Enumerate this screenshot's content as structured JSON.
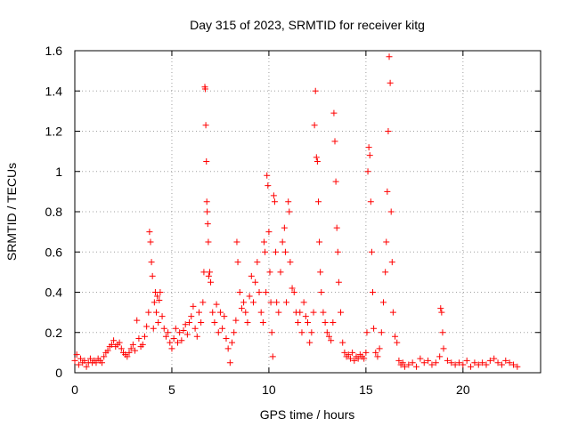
{
  "chart_data": {
    "type": "scatter",
    "title": "Day 315 of 2023, SRMTID for receiver kitg",
    "xlabel": "GPS time / hours",
    "ylabel": "SRMTID / TECUs",
    "xlim": [
      0,
      24
    ],
    "ylim": [
      0,
      1.6
    ],
    "grid": true,
    "marker": "+",
    "color": "#ff0000",
    "xticks": [
      0,
      5,
      10,
      15,
      20
    ],
    "xtick_labels": [
      "0",
      "5",
      "10",
      "15",
      "20"
    ],
    "yticks": [
      0,
      0.2,
      0.4,
      0.6,
      0.8,
      1,
      1.2,
      1.4,
      1.6
    ],
    "ytick_labels": [
      "0",
      "0.2",
      "0.4",
      "0.6",
      "0.8",
      "1",
      "1.2",
      "1.4",
      "1.6"
    ],
    "series": [
      {
        "name": "SRMTID",
        "points": [
          [
            0.0,
            0.06
          ],
          [
            0.1,
            0.09
          ],
          [
            0.2,
            0.04
          ],
          [
            0.3,
            0.07
          ],
          [
            0.4,
            0.05
          ],
          [
            0.5,
            0.06
          ],
          [
            0.6,
            0.03
          ],
          [
            0.7,
            0.05
          ],
          [
            0.8,
            0.07
          ],
          [
            0.9,
            0.05
          ],
          [
            1.0,
            0.06
          ],
          [
            1.1,
            0.05
          ],
          [
            1.2,
            0.07
          ],
          [
            1.3,
            0.06
          ],
          [
            1.4,
            0.05
          ],
          [
            1.5,
            0.08
          ],
          [
            1.6,
            0.1
          ],
          [
            1.7,
            0.11
          ],
          [
            1.8,
            0.13
          ],
          [
            1.9,
            0.14
          ],
          [
            2.0,
            0.16
          ],
          [
            2.1,
            0.13
          ],
          [
            2.2,
            0.14
          ],
          [
            2.3,
            0.15
          ],
          [
            2.4,
            0.12
          ],
          [
            2.5,
            0.1
          ],
          [
            2.6,
            0.09
          ],
          [
            2.7,
            0.08
          ],
          [
            2.8,
            0.1
          ],
          [
            2.9,
            0.12
          ],
          [
            3.0,
            0.14
          ],
          [
            3.1,
            0.11
          ],
          [
            3.2,
            0.26
          ],
          [
            3.3,
            0.17
          ],
          [
            3.4,
            0.13
          ],
          [
            3.5,
            0.14
          ],
          [
            3.6,
            0.18
          ],
          [
            3.7,
            0.23
          ],
          [
            3.8,
            0.3
          ],
          [
            3.85,
            0.7
          ],
          [
            3.9,
            0.65
          ],
          [
            3.95,
            0.55
          ],
          [
            4.0,
            0.48
          ],
          [
            4.05,
            0.22
          ],
          [
            4.1,
            0.35
          ],
          [
            4.15,
            0.4
          ],
          [
            4.2,
            0.3
          ],
          [
            4.25,
            0.38
          ],
          [
            4.3,
            0.25
          ],
          [
            4.35,
            0.36
          ],
          [
            4.4,
            0.4
          ],
          [
            4.5,
            0.28
          ],
          [
            4.6,
            0.22
          ],
          [
            4.7,
            0.18
          ],
          [
            4.8,
            0.2
          ],
          [
            4.9,
            0.15
          ],
          [
            5.0,
            0.12
          ],
          [
            5.1,
            0.17
          ],
          [
            5.2,
            0.22
          ],
          [
            5.3,
            0.15
          ],
          [
            5.4,
            0.2
          ],
          [
            5.5,
            0.16
          ],
          [
            5.6,
            0.21
          ],
          [
            5.7,
            0.24
          ],
          [
            5.8,
            0.19
          ],
          [
            5.9,
            0.25
          ],
          [
            6.0,
            0.28
          ],
          [
            6.1,
            0.33
          ],
          [
            6.2,
            0.22
          ],
          [
            6.3,
            0.18
          ],
          [
            6.4,
            0.3
          ],
          [
            6.5,
            0.25
          ],
          [
            6.6,
            0.35
          ],
          [
            6.65,
            0.5
          ],
          [
            6.7,
            1.42
          ],
          [
            6.72,
            1.41
          ],
          [
            6.75,
            1.23
          ],
          [
            6.78,
            1.05
          ],
          [
            6.8,
            0.85
          ],
          [
            6.82,
            0.8
          ],
          [
            6.85,
            0.74
          ],
          [
            6.88,
            0.65
          ],
          [
            6.9,
            0.48
          ],
          [
            6.95,
            0.5
          ],
          [
            7.0,
            0.45
          ],
          [
            7.1,
            0.3
          ],
          [
            7.2,
            0.25
          ],
          [
            7.3,
            0.34
          ],
          [
            7.4,
            0.2
          ],
          [
            7.5,
            0.3
          ],
          [
            7.6,
            0.22
          ],
          [
            7.7,
            0.28
          ],
          [
            7.8,
            0.17
          ],
          [
            7.9,
            0.12
          ],
          [
            8.0,
            0.05
          ],
          [
            8.1,
            0.15
          ],
          [
            8.2,
            0.2
          ],
          [
            8.3,
            0.26
          ],
          [
            8.35,
            0.65
          ],
          [
            8.4,
            0.55
          ],
          [
            8.5,
            0.4
          ],
          [
            8.6,
            0.32
          ],
          [
            8.7,
            0.35
          ],
          [
            8.8,
            0.3
          ],
          [
            8.9,
            0.25
          ],
          [
            9.0,
            0.38
          ],
          [
            9.1,
            0.48
          ],
          [
            9.2,
            0.35
          ],
          [
            9.3,
            0.45
          ],
          [
            9.4,
            0.55
          ],
          [
            9.5,
            0.4
          ],
          [
            9.6,
            0.3
          ],
          [
            9.7,
            0.25
          ],
          [
            9.75,
            0.65
          ],
          [
            9.8,
            0.6
          ],
          [
            9.85,
            0.4
          ],
          [
            9.9,
            0.98
          ],
          [
            9.95,
            0.93
          ],
          [
            10.0,
            0.7
          ],
          [
            10.05,
            0.5
          ],
          [
            10.1,
            0.35
          ],
          [
            10.15,
            0.2
          ],
          [
            10.2,
            0.08
          ],
          [
            10.25,
            0.88
          ],
          [
            10.3,
            0.85
          ],
          [
            10.35,
            0.6
          ],
          [
            10.4,
            0.35
          ],
          [
            10.5,
            0.3
          ],
          [
            10.6,
            0.5
          ],
          [
            10.7,
            0.65
          ],
          [
            10.8,
            0.72
          ],
          [
            10.85,
            0.6
          ],
          [
            10.9,
            0.35
          ],
          [
            11.0,
            0.85
          ],
          [
            11.05,
            0.8
          ],
          [
            11.1,
            0.55
          ],
          [
            11.2,
            0.42
          ],
          [
            11.3,
            0.4
          ],
          [
            11.4,
            0.3
          ],
          [
            11.5,
            0.25
          ],
          [
            11.6,
            0.3
          ],
          [
            11.7,
            0.2
          ],
          [
            11.8,
            0.35
          ],
          [
            11.9,
            0.28
          ],
          [
            12.0,
            0.25
          ],
          [
            12.1,
            0.15
          ],
          [
            12.2,
            0.2
          ],
          [
            12.3,
            0.3
          ],
          [
            12.35,
            1.23
          ],
          [
            12.4,
            1.4
          ],
          [
            12.45,
            1.07
          ],
          [
            12.5,
            1.05
          ],
          [
            12.55,
            0.85
          ],
          [
            12.6,
            0.65
          ],
          [
            12.65,
            0.5
          ],
          [
            12.7,
            0.4
          ],
          [
            12.8,
            0.3
          ],
          [
            12.9,
            0.25
          ],
          [
            13.0,
            0.2
          ],
          [
            13.1,
            0.18
          ],
          [
            13.2,
            0.16
          ],
          [
            13.3,
            0.25
          ],
          [
            13.35,
            1.29
          ],
          [
            13.4,
            1.15
          ],
          [
            13.45,
            0.95
          ],
          [
            13.5,
            0.72
          ],
          [
            13.55,
            0.6
          ],
          [
            13.6,
            0.45
          ],
          [
            13.7,
            0.3
          ],
          [
            13.8,
            0.15
          ],
          [
            13.9,
            0.1
          ],
          [
            14.0,
            0.08
          ],
          [
            14.1,
            0.09
          ],
          [
            14.2,
            0.07
          ],
          [
            14.3,
            0.1
          ],
          [
            14.4,
            0.06
          ],
          [
            14.5,
            0.08
          ],
          [
            14.6,
            0.07
          ],
          [
            14.7,
            0.09
          ],
          [
            14.8,
            0.08
          ],
          [
            14.9,
            0.07
          ],
          [
            15.0,
            0.1
          ],
          [
            15.05,
            0.2
          ],
          [
            15.1,
            1.0
          ],
          [
            15.15,
            1.12
          ],
          [
            15.2,
            1.08
          ],
          [
            15.25,
            0.85
          ],
          [
            15.3,
            0.6
          ],
          [
            15.35,
            0.4
          ],
          [
            15.4,
            0.22
          ],
          [
            15.5,
            0.1
          ],
          [
            15.6,
            0.08
          ],
          [
            15.7,
            0.12
          ],
          [
            15.8,
            0.2
          ],
          [
            15.9,
            0.35
          ],
          [
            16.0,
            0.5
          ],
          [
            16.05,
            0.65
          ],
          [
            16.1,
            0.9
          ],
          [
            16.15,
            1.2
          ],
          [
            16.2,
            1.57
          ],
          [
            16.25,
            1.44
          ],
          [
            16.3,
            0.8
          ],
          [
            16.35,
            0.55
          ],
          [
            16.4,
            0.3
          ],
          [
            16.5,
            0.18
          ],
          [
            16.6,
            0.15
          ],
          [
            16.7,
            0.06
          ],
          [
            16.8,
            0.04
          ],
          [
            16.9,
            0.05
          ],
          [
            17.0,
            0.03
          ],
          [
            17.2,
            0.04
          ],
          [
            17.4,
            0.05
          ],
          [
            17.6,
            0.03
          ],
          [
            17.8,
            0.07
          ],
          [
            18.0,
            0.05
          ],
          [
            18.2,
            0.06
          ],
          [
            18.4,
            0.04
          ],
          [
            18.6,
            0.05
          ],
          [
            18.8,
            0.08
          ],
          [
            18.85,
            0.32
          ],
          [
            18.9,
            0.3
          ],
          [
            18.95,
            0.2
          ],
          [
            19.0,
            0.12
          ],
          [
            19.2,
            0.06
          ],
          [
            19.4,
            0.05
          ],
          [
            19.6,
            0.04
          ],
          [
            19.8,
            0.05
          ],
          [
            20.0,
            0.04
          ],
          [
            20.2,
            0.06
          ],
          [
            20.4,
            0.03
          ],
          [
            20.6,
            0.05
          ],
          [
            20.8,
            0.04
          ],
          [
            21.0,
            0.05
          ],
          [
            21.2,
            0.04
          ],
          [
            21.4,
            0.06
          ],
          [
            21.6,
            0.07
          ],
          [
            21.8,
            0.05
          ],
          [
            22.0,
            0.04
          ],
          [
            22.2,
            0.06
          ],
          [
            22.4,
            0.05
          ],
          [
            22.6,
            0.04
          ],
          [
            22.8,
            0.03
          ]
        ]
      }
    ]
  }
}
